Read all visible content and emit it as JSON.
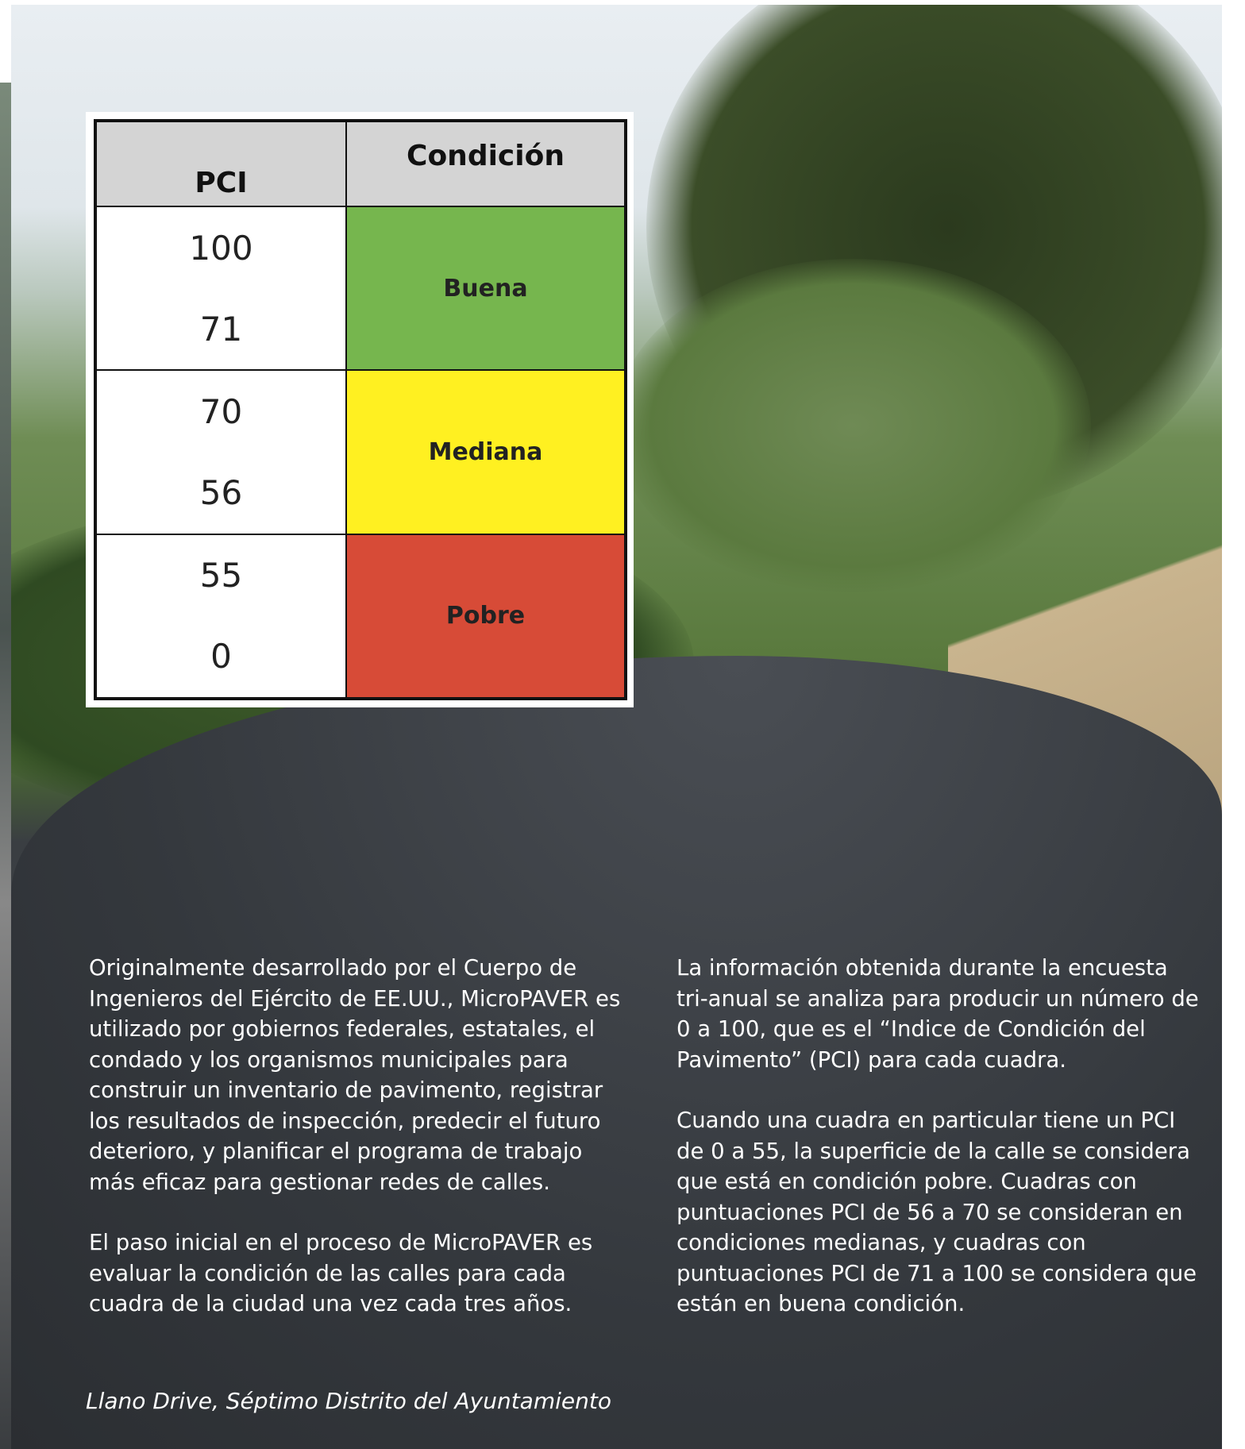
{
  "table": {
    "headers": [
      "PCI",
      "Condición"
    ],
    "rows": [
      {
        "high": "100",
        "low": "71",
        "condition": "Buena",
        "color": "#76b64e"
      },
      {
        "high": "70",
        "low": "56",
        "condition": "Mediana",
        "color": "#fff021"
      },
      {
        "high": "55",
        "low": "0",
        "condition": "Pobre",
        "color": "#d74b37"
      }
    ]
  },
  "columns": [
    [
      "Originalmente desarrollado por el Cuerpo de Ingenieros del Ejército de EE.UU., MicroPAVER es utilizado por gobiernos federales, estatales, el condado y los organismos municipales para construir un inventario de pavimento, registrar los resultados de inspección, predecir el futuro deterioro, y planificar el programa de trabajo más eficaz para gestionar redes de calles.",
      "El paso inicial en el proceso de MicroPAVER es evaluar la condición de las calles para cada cuadra de la ciudad una vez cada tres años."
    ],
    [
      "La información obtenida durante la encuesta tri-anual se analiza para producir un número de 0 a 100, que es el “Indice de Condición del Pavimento” (PCI) para cada cuadra.",
      "Cuando una cuadra en particular tiene un PCI de 0 a 55, la superficie de la calle se considera que está en condición pobre. Cuadras con puntuaciones PCI de 56 a 70 se consideran en condiciones medianas, y cuadras con puntuaciones PCI de 71 a 100 se considera que están en buena condición."
    ]
  ],
  "caption": "Llano Drive, Séptimo Distrito del Ayuntamiento"
}
